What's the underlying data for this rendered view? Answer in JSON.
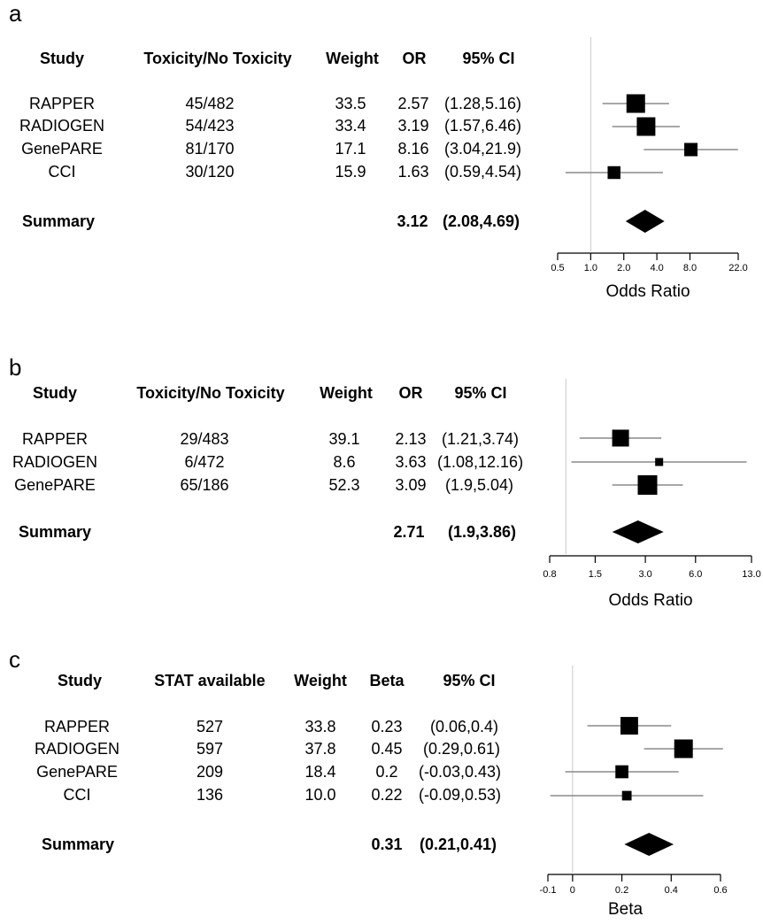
{
  "chart_data": [
    {
      "type": "forest",
      "panel": "a",
      "columns": [
        "Study",
        "Toxicity/No Toxicity",
        "Weight",
        "OR",
        "95% CI"
      ],
      "rows": [
        {
          "study": "RAPPER",
          "count": "45/482",
          "weight": "33.5",
          "est_label": "2.57",
          "ci_label": "(1.28,5.16)",
          "est": 2.57,
          "lo": 1.28,
          "hi": 5.16
        },
        {
          "study": "RADIOGEN",
          "count": "54/423",
          "weight": "33.4",
          "est_label": "3.19",
          "ci_label": "(1.57,6.46)",
          "est": 3.19,
          "lo": 1.57,
          "hi": 6.46
        },
        {
          "study": "GenePARE",
          "count": "81/170",
          "weight": "17.1",
          "est_label": "8.16",
          "ci_label": "(3.04,21.9)",
          "est": 8.16,
          "lo": 3.04,
          "hi": 21.9
        },
        {
          "study": "CCI",
          "count": "30/120",
          "weight": "15.9",
          "est_label": "1.63",
          "ci_label": "(0.59,4.54)",
          "est": 1.63,
          "lo": 0.59,
          "hi": 4.54
        }
      ],
      "summary": {
        "label": "Summary",
        "est_label": "3.12",
        "ci_label": "(2.08,4.69)",
        "est": 3.12,
        "lo": 2.08,
        "hi": 4.69
      },
      "xscale": "log",
      "xlim": [
        0.5,
        22.0
      ],
      "ref": 1.0,
      "ticks": [
        0.5,
        1.0,
        2.0,
        4.0,
        8.0,
        22.0
      ],
      "tick_labels": [
        "0.5",
        "1.0",
        "2.0",
        "4.0",
        "8.0",
        "22.0"
      ],
      "xlabel": "Odds Ratio"
    },
    {
      "type": "forest",
      "panel": "b",
      "columns": [
        "Study",
        "Toxicity/No Toxicity",
        "Weight",
        "OR",
        "95% CI"
      ],
      "rows": [
        {
          "study": "RAPPER",
          "count": "29/483",
          "weight": "39.1",
          "est_label": "2.13",
          "ci_label": "(1.21,3.74)",
          "est": 2.13,
          "lo": 1.21,
          "hi": 3.74
        },
        {
          "study": "RADIOGEN",
          "count": "6/472",
          "weight": "8.6",
          "est_label": "3.63",
          "ci_label": "(1.08,12.16)",
          "est": 3.63,
          "lo": 1.08,
          "hi": 12.16
        },
        {
          "study": "GenePARE",
          "count": "65/186",
          "weight": "52.3",
          "est_label": "3.09",
          "ci_label": "(1.9,5.04)",
          "est": 3.09,
          "lo": 1.9,
          "hi": 5.04
        }
      ],
      "summary": {
        "label": "Summary",
        "est_label": "2.71",
        "ci_label": "(1.9,3.86)",
        "est": 2.71,
        "lo": 1.9,
        "hi": 3.86
      },
      "xscale": "log",
      "xlim": [
        0.8,
        13.0
      ],
      "ref": 1.0,
      "ticks": [
        0.8,
        1.5,
        3.0,
        6.0,
        13.0
      ],
      "tick_labels": [
        "0.8",
        "1.5",
        "3.0",
        "6.0",
        "13.0"
      ],
      "xlabel": "Odds Ratio"
    },
    {
      "type": "forest",
      "panel": "c",
      "columns": [
        "Study",
        "STAT available",
        "Weight",
        "Beta",
        "95% CI"
      ],
      "rows": [
        {
          "study": "RAPPER",
          "count": "527",
          "weight": "33.8",
          "est_label": "0.23",
          "ci_label": "(0.06,0.4)",
          "est": 0.23,
          "lo": 0.06,
          "hi": 0.4
        },
        {
          "study": "RADIOGEN",
          "count": "597",
          "weight": "37.8",
          "est_label": "0.45",
          "ci_label": "(0.29,0.61)",
          "est": 0.45,
          "lo": 0.29,
          "hi": 0.61
        },
        {
          "study": "GenePARE",
          "count": "209",
          "weight": "18.4",
          "est_label": "0.2",
          "ci_label": "(-0.03,0.43)",
          "est": 0.2,
          "lo": -0.03,
          "hi": 0.43
        },
        {
          "study": "CCI",
          "count": "136",
          "weight": "10.0",
          "est_label": "0.22",
          "ci_label": "(-0.09,0.53)",
          "est": 0.22,
          "lo": -0.09,
          "hi": 0.53
        }
      ],
      "summary": {
        "label": "Summary",
        "est_label": "0.31",
        "ci_label": "(0.21,0.41)",
        "est": 0.31,
        "lo": 0.21,
        "hi": 0.41
      },
      "xscale": "linear",
      "xlim": [
        -0.1,
        0.6
      ],
      "ref": 0,
      "ticks": [
        -0.1,
        0,
        0.2,
        0.4,
        0.6
      ],
      "tick_labels": [
        "-0.1",
        "0",
        "0.2",
        "0.4",
        "0.6"
      ],
      "xlabel": "Beta"
    }
  ]
}
